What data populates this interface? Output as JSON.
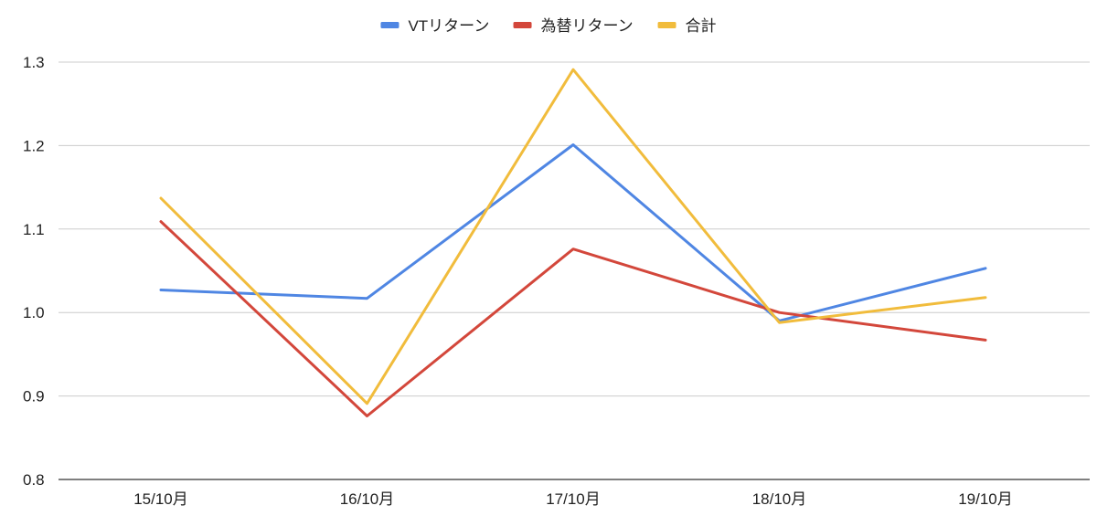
{
  "chart_data": {
    "type": "line",
    "categories": [
      "15/10月",
      "16/10月",
      "17/10月",
      "18/10月",
      "19/10月"
    ],
    "series": [
      {
        "name": "VTリターン",
        "color": "#4f86e3",
        "values": [
          1.027,
          1.017,
          1.201,
          0.99,
          1.053
        ]
      },
      {
        "name": "為替リターン",
        "color": "#d3473b",
        "values": [
          1.109,
          0.876,
          1.076,
          1.0,
          0.967
        ]
      },
      {
        "name": "合計",
        "color": "#f1bc3c",
        "values": [
          1.137,
          0.891,
          1.291,
          0.988,
          1.018
        ]
      }
    ],
    "yticks": [
      "0.8",
      "0.9",
      "1.0",
      "1.1",
      "1.2",
      "1.3"
    ],
    "ylim": [
      0.8,
      1.3
    ],
    "grid": true,
    "legend": "top-center",
    "title": "",
    "xlabel": "",
    "ylabel": ""
  }
}
